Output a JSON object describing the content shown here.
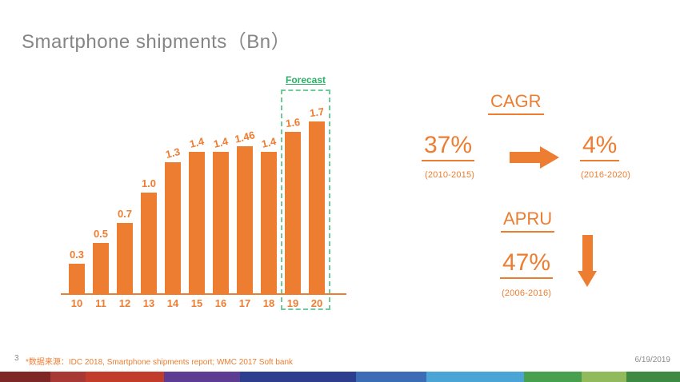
{
  "slide": {
    "title": "Smartphone shipments（Bn）",
    "page_number": "3",
    "footnote": "*数据来源：IDC 2018, Smartphone shipments report; WMC 2017 Soft bank",
    "date": "6/19/2019"
  },
  "chart_data": {
    "type": "bar",
    "title": "Smartphone shipments (Bn)",
    "categories": [
      "10",
      "11",
      "12",
      "13",
      "14",
      "15",
      "16",
      "17",
      "18",
      "19",
      "20"
    ],
    "values": [
      0.3,
      0.5,
      0.7,
      1.0,
      1.3,
      1.4,
      1.4,
      1.46,
      1.4,
      1.6,
      1.7
    ],
    "bar_labels": [
      "0.3",
      "0.5",
      "0.7",
      "1.0",
      "1.3",
      "1.4",
      "1.4",
      "1.46",
      "1.4",
      "1.6",
      "1.7"
    ],
    "xlabel": "",
    "ylabel": "",
    "ylim": [
      0,
      1.8
    ],
    "grid": false,
    "legend": false,
    "bar_color": "#ED7D31",
    "forecast": {
      "label": "Forecast",
      "categories": [
        "19",
        "20"
      ]
    }
  },
  "stats": {
    "cagr_heading": "CAGR",
    "cagr_from_value": "37%",
    "cagr_from_period": "(2010-2015)",
    "cagr_to_value": "4%",
    "cagr_to_period": "(2016-2020)",
    "apru_heading": "APRU",
    "apru_value": "47%",
    "apru_period": "(2006-2016)"
  },
  "colors": {
    "accent_orange": "#ED7D31",
    "title_gray": "#858585",
    "forecast_green": "#2FAE68",
    "forecast_border_green": "#6FCB9A"
  },
  "footer_strip_colors": [
    "#7E2725",
    "#A83833",
    "#C13C2B",
    "#5C3D92",
    "#2E3E8E",
    "#3C6CB5",
    "#4BA4D6",
    "#48A04E",
    "#90BA5C",
    "#3F8A40"
  ]
}
